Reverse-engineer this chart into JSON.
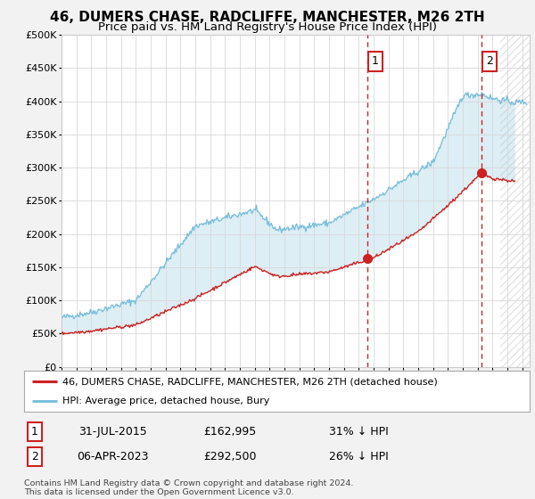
{
  "title": "46, DUMERS CHASE, RADCLIFFE, MANCHESTER, M26 2TH",
  "subtitle": "Price paid vs. HM Land Registry's House Price Index (HPI)",
  "ylim": [
    0,
    500000
  ],
  "yticks": [
    0,
    50000,
    100000,
    150000,
    200000,
    250000,
    300000,
    350000,
    400000,
    450000,
    500000
  ],
  "ytick_labels": [
    "£0",
    "£50K",
    "£100K",
    "£150K",
    "£200K",
    "£250K",
    "£300K",
    "£350K",
    "£400K",
    "£450K",
    "£500K"
  ],
  "xlim_start": 1995.0,
  "xlim_end": 2026.5,
  "hpi_color": "#7bbfdb",
  "price_color": "#cc2222",
  "vline_color": "#cc2222",
  "background_color": "#f2f2f2",
  "plot_bg_color": "#ffffff",
  "legend_label_red": "46, DUMERS CHASE, RADCLIFFE, MANCHESTER, M26 2TH (detached house)",
  "legend_label_blue": "HPI: Average price, detached house, Bury",
  "annotation1_date": "31-JUL-2015",
  "annotation1_price": "£162,995",
  "annotation1_hpi": "31% ↓ HPI",
  "annotation2_date": "06-APR-2023",
  "annotation2_price": "£292,500",
  "annotation2_hpi": "26% ↓ HPI",
  "vline1_year": 2015.58,
  "vline2_year": 2023.27,
  "sale1_year": 2015.58,
  "sale1_price": 162995,
  "sale2_year": 2023.27,
  "sale2_price": 292500,
  "hatch_start": 2024.5,
  "footer": "Contains HM Land Registry data © Crown copyright and database right 2024.\nThis data is licensed under the Open Government Licence v3.0.",
  "title_fontsize": 11,
  "subtitle_fontsize": 9.5
}
